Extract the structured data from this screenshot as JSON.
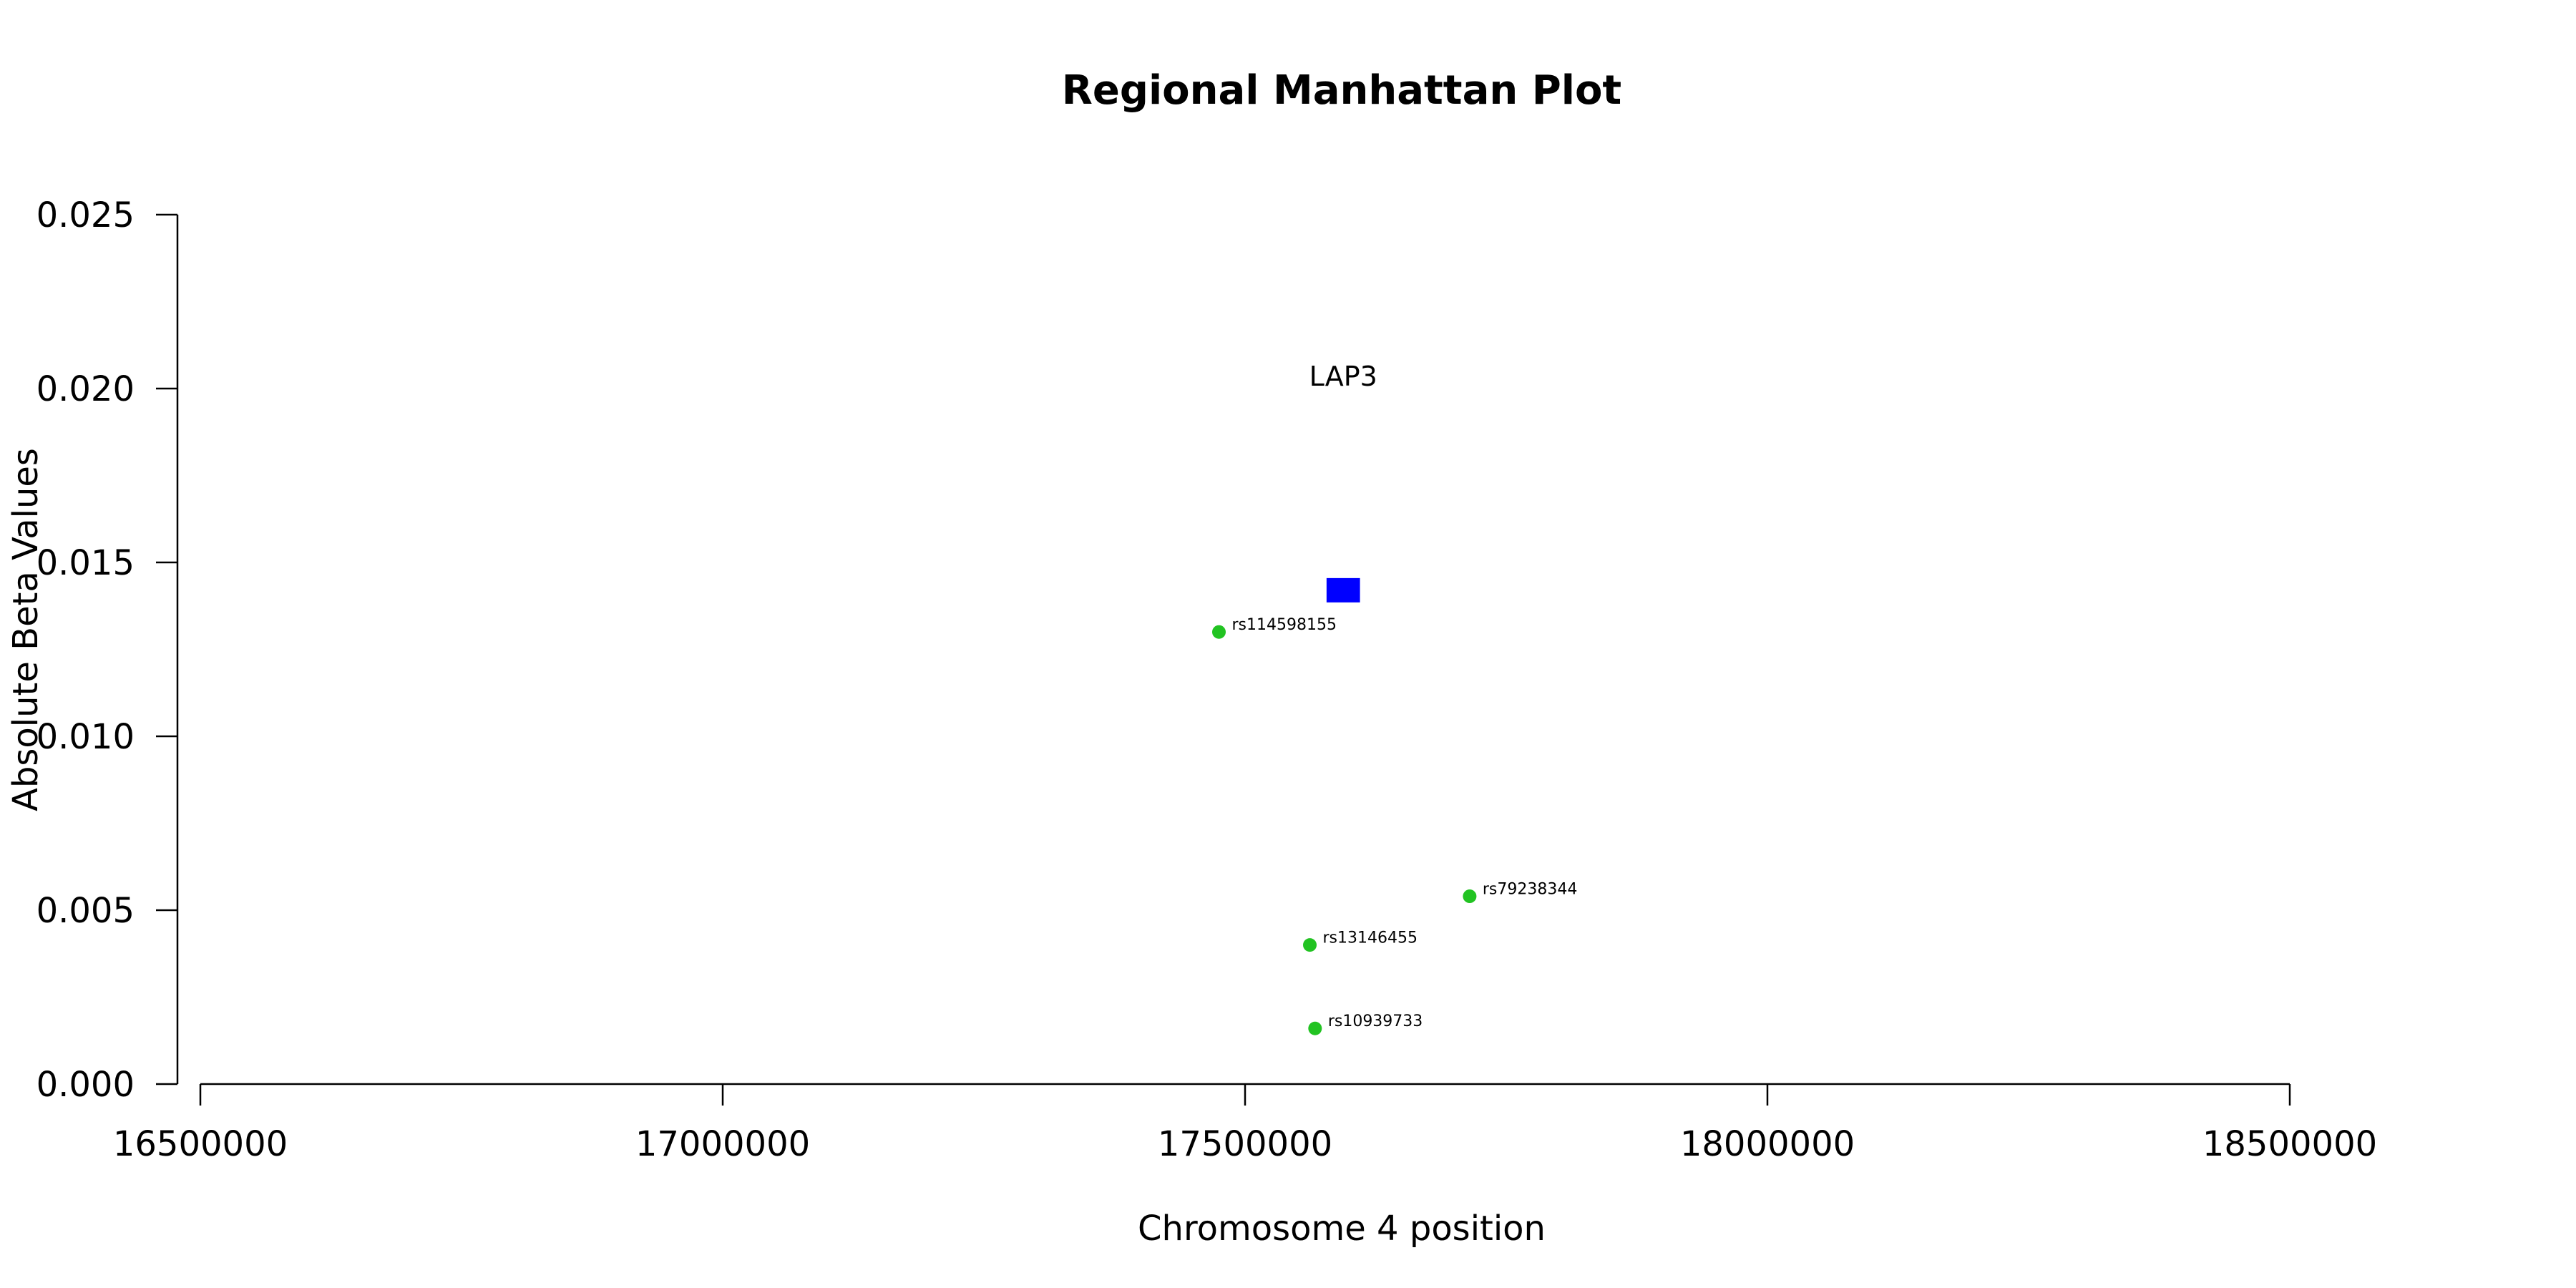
{
  "chart_data": {
    "type": "scatter",
    "title": "Regional Manhattan Plot",
    "xlabel": "Chromosome 4 position",
    "ylabel": "Absolute Beta Values",
    "xlim": [
      16500000,
      18500000
    ],
    "ylim": [
      0,
      0.025
    ],
    "x_ticks": [
      16500000,
      17000000,
      17500000,
      18000000,
      18500000
    ],
    "y_ticks": [
      "0.000",
      "0.005",
      "0.010",
      "0.015",
      "0.020",
      "0.025"
    ],
    "grid": false,
    "colors": {
      "snp": "#22c322",
      "gene": "#0000ff"
    },
    "genes": [
      {
        "name": "LAP3",
        "start": 17578000,
        "end": 17610000,
        "y": 0.0142
      }
    ],
    "snps": [
      {
        "id": "rs114598155",
        "x": 17475000,
        "y": 0.013
      },
      {
        "id": "rs79238344",
        "x": 17715000,
        "y": 0.0054
      },
      {
        "id": "rs13146455",
        "x": 17562000,
        "y": 0.004
      },
      {
        "id": "rs10939733",
        "x": 17567000,
        "y": 0.0016
      }
    ]
  }
}
